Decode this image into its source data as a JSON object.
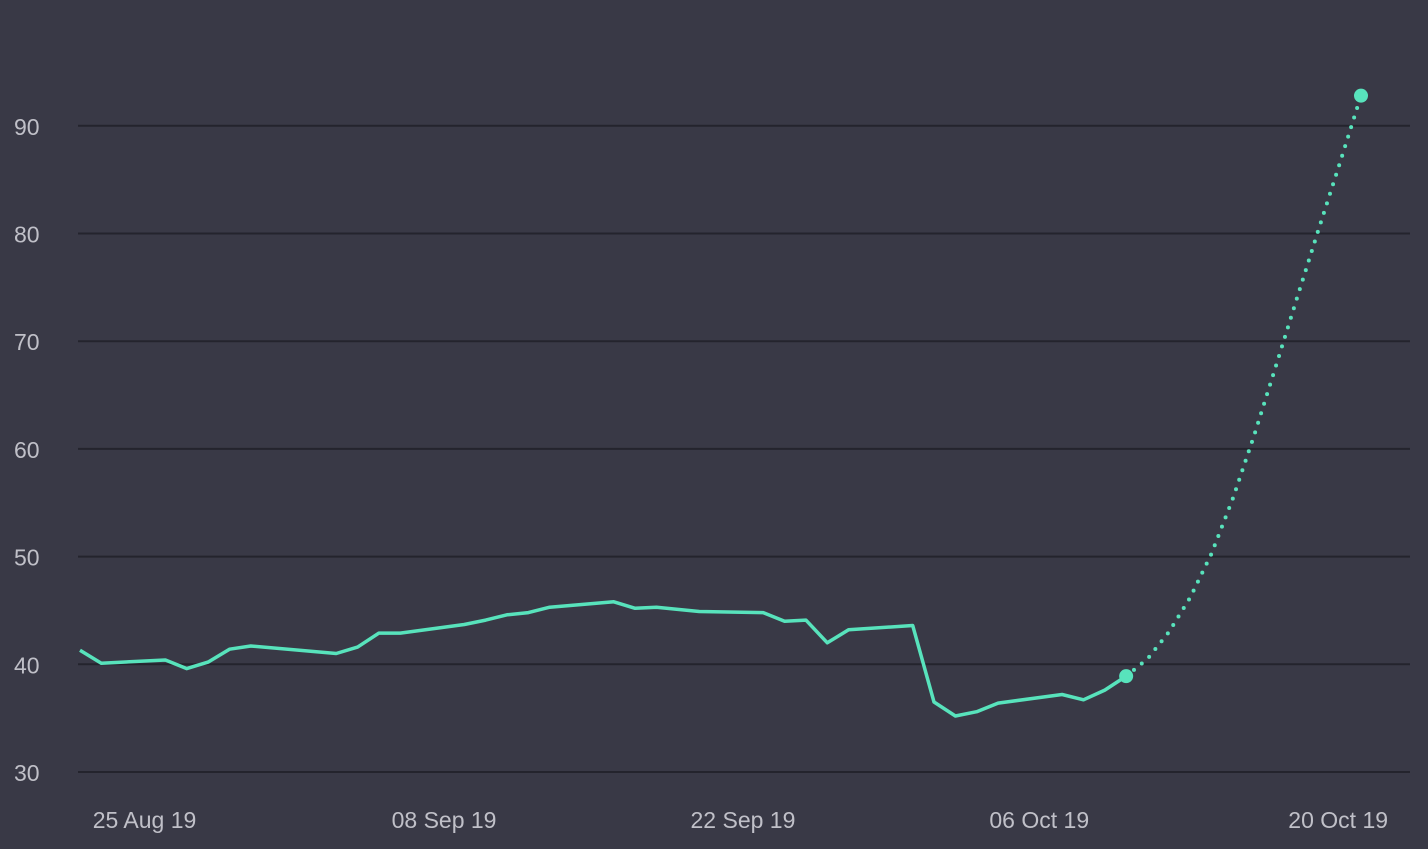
{
  "chart_data": {
    "type": "line",
    "colors": {
      "background": "#393946",
      "grid": "#24242d",
      "line": "#58e3bc",
      "tick_text": "#c0c0c8"
    },
    "grid": true,
    "x_axis": {
      "type": "date",
      "range": [
        "2019-08-23",
        "2019-10-23"
      ],
      "ticks": [
        {
          "date": "2019-08-25",
          "label": "25 Aug 19"
        },
        {
          "date": "2019-09-08",
          "label": "08 Sep 19"
        },
        {
          "date": "2019-09-22",
          "label": "22 Sep 19"
        },
        {
          "date": "2019-10-06",
          "label": "06 Oct 19"
        },
        {
          "date": "2019-10-20",
          "label": "20 Oct 19"
        }
      ]
    },
    "y_axis": {
      "range": [
        30,
        96
      ],
      "ticks": [
        30,
        40,
        50,
        60,
        70,
        80,
        90
      ]
    },
    "series": [
      {
        "style": "solid",
        "points": [
          [
            "2019-08-23",
            41.3
          ],
          [
            "2019-08-24",
            40.1
          ],
          [
            "2019-08-27",
            40.4
          ],
          [
            "2019-08-28",
            39.6
          ],
          [
            "2019-08-29",
            40.2
          ],
          [
            "2019-08-30",
            41.4
          ],
          [
            "2019-08-31",
            41.7
          ],
          [
            "2019-09-04",
            41.0
          ],
          [
            "2019-09-05",
            41.6
          ],
          [
            "2019-09-06",
            42.9
          ],
          [
            "2019-09-07",
            42.9
          ],
          [
            "2019-09-10",
            43.7
          ],
          [
            "2019-09-11",
            44.1
          ],
          [
            "2019-09-12",
            44.6
          ],
          [
            "2019-09-13",
            44.8
          ],
          [
            "2019-09-14",
            45.3
          ],
          [
            "2019-09-17",
            45.8
          ],
          [
            "2019-09-18",
            45.2
          ],
          [
            "2019-09-19",
            45.3
          ],
          [
            "2019-09-20",
            45.1
          ],
          [
            "2019-09-21",
            44.9
          ],
          [
            "2019-09-24",
            44.8
          ],
          [
            "2019-09-25",
            44.0
          ],
          [
            "2019-09-26",
            44.1
          ],
          [
            "2019-09-27",
            42.0
          ],
          [
            "2019-09-28",
            43.2
          ],
          [
            "2019-10-01",
            43.6
          ],
          [
            "2019-10-02",
            36.5
          ],
          [
            "2019-10-03",
            35.2
          ],
          [
            "2019-10-04",
            35.6
          ],
          [
            "2019-10-05",
            36.4
          ],
          [
            "2019-10-08",
            37.2
          ],
          [
            "2019-10-09",
            36.7
          ],
          [
            "2019-10-10",
            37.6
          ],
          [
            "2019-10-11",
            38.9
          ]
        ]
      },
      {
        "style": "dotted",
        "points": [
          [
            "2019-10-11",
            38.9
          ],
          [
            "2019-10-12",
            40.5
          ],
          [
            "2019-10-13",
            43.0
          ],
          [
            "2019-10-14",
            46.2
          ],
          [
            "2019-10-15",
            50.3
          ],
          [
            "2019-10-16",
            55.4
          ],
          [
            "2019-10-17",
            61.3
          ],
          [
            "2019-10-18",
            67.6
          ],
          [
            "2019-10-19",
            74.0
          ],
          [
            "2019-10-20",
            80.3
          ],
          [
            "2019-10-21",
            86.5
          ],
          [
            "2019-10-22",
            92.8
          ]
        ]
      }
    ],
    "markers": [
      [
        "2019-10-11",
        38.9
      ],
      [
        "2019-10-22",
        92.8
      ]
    ]
  }
}
